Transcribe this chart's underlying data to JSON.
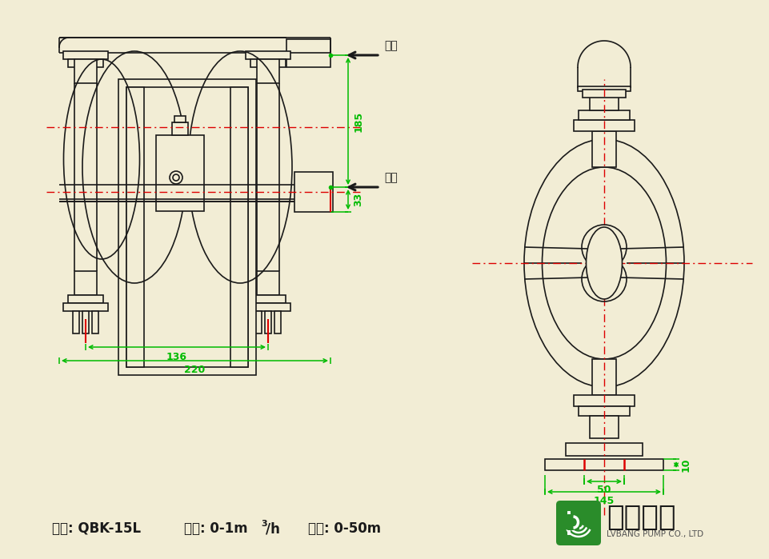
{
  "bg_color": "#f2edd5",
  "lc": "#1a1a1a",
  "gc": "#00bb00",
  "rc": "#dd0000",
  "brand_green": "#2a8c2a",
  "dim_185": "185",
  "dim_33": "33",
  "dim_136": "136",
  "dim_220": "220",
  "dim_50": "50",
  "dim_145": "145",
  "dim_10": "10",
  "outlet_text": "出口",
  "inlet_text": "进口",
  "brand_cn": "绿邦泵业",
  "brand_en": "LVBANG PUMP CO., LTD"
}
